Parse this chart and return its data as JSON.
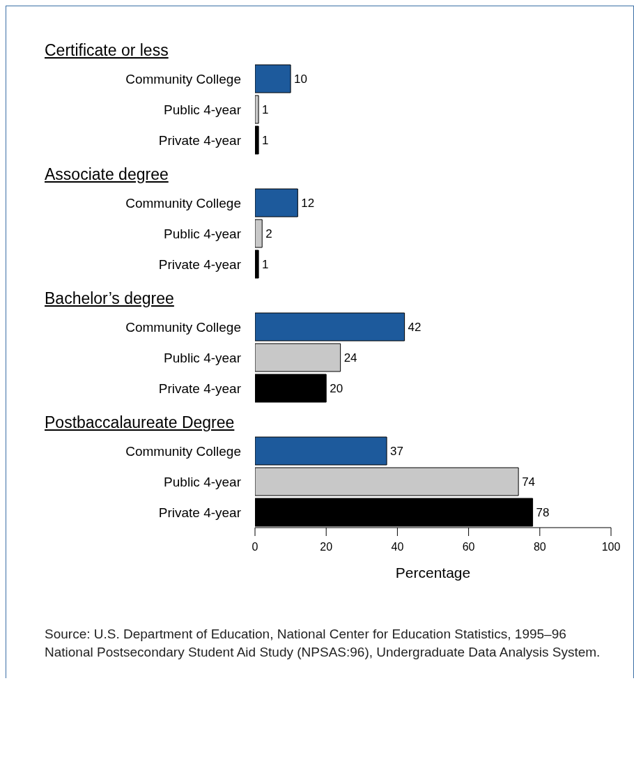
{
  "chart_data": [
    {
      "type": "bar",
      "orientation": "horizontal",
      "title": "Certificate or less",
      "categories": [
        "Community College",
        "Public 4-year",
        "Private 4-year"
      ],
      "values": [
        10,
        1,
        1
      ],
      "colors": [
        "#1d5a9c",
        "#c8c8c8",
        "#000000"
      ],
      "xlim": [
        0,
        100
      ],
      "data_labels": true,
      "tick_labels": "y"
    },
    {
      "type": "bar",
      "orientation": "horizontal",
      "title": "Associate degree",
      "categories": [
        "Community College",
        "Public 4-year",
        "Private 4-year"
      ],
      "values": [
        12,
        2,
        1
      ],
      "colors": [
        "#1d5a9c",
        "#c8c8c8",
        "#000000"
      ],
      "xlim": [
        0,
        100
      ],
      "data_labels": true,
      "tick_labels": "y"
    },
    {
      "type": "bar",
      "orientation": "horizontal",
      "title": "Bachelor’s degree",
      "categories": [
        "Community College",
        "Public 4-year",
        "Private 4-year"
      ],
      "values": [
        42,
        24,
        20
      ],
      "colors": [
        "#1d5a9c",
        "#c8c8c8",
        "#000000"
      ],
      "xlim": [
        0,
        100
      ],
      "data_labels": true,
      "tick_labels": "y"
    },
    {
      "type": "bar",
      "orientation": "horizontal",
      "title": "Postbaccalaureate Degree",
      "categories": [
        "Community College",
        "Public 4-year",
        "Private 4-year"
      ],
      "values": [
        37,
        74,
        78
      ],
      "colors": [
        "#1d5a9c",
        "#c8c8c8",
        "#000000"
      ],
      "xlim": [
        0,
        100
      ],
      "xticks": [
        0,
        20,
        40,
        60,
        80,
        100
      ],
      "xlabel": "Percentage",
      "data_labels": true,
      "annotations": [
        "Source: U.S. Department of Education, National Center for Education Statistics, 1995–96 National Postsecondary Student Aid Study (NPSAS:96), Undergraduate Data Analysis System."
      ]
    }
  ]
}
